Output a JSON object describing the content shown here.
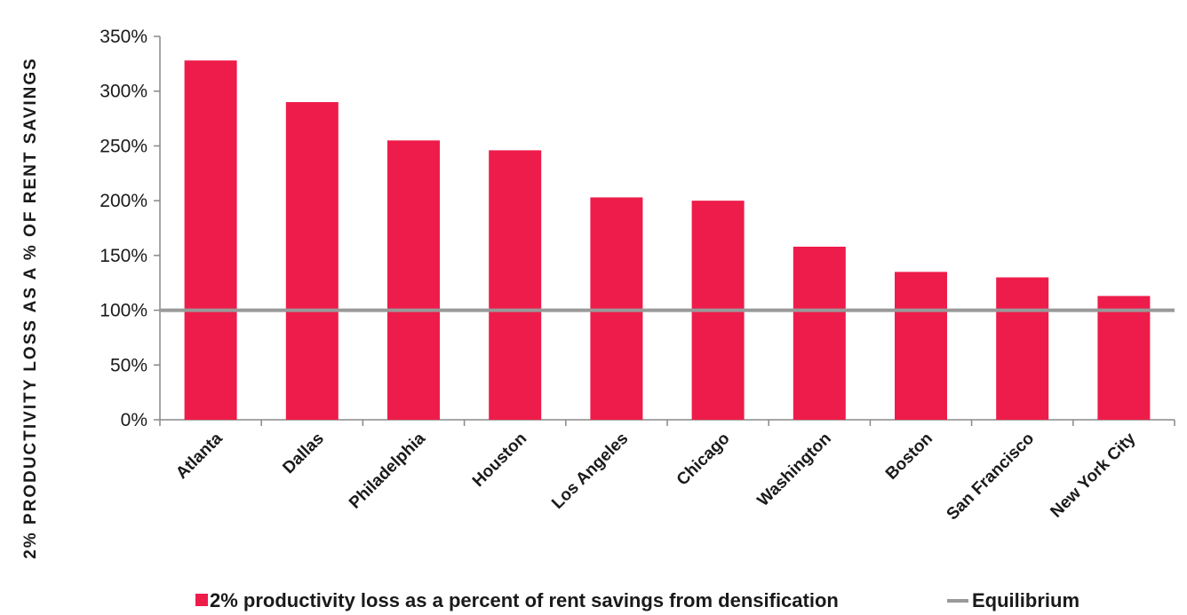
{
  "chart_data": {
    "type": "bar",
    "ylabel": "2% PRODUCTIVITY LOSS AS A % OF RENT SAVINGS",
    "xlabel": "",
    "categories": [
      "Atlanta",
      "Dallas",
      "Philadelphia",
      "Houston",
      "Los Angeles",
      "Chicago",
      "Washington",
      "Boston",
      "San Francisco",
      "New York City"
    ],
    "series": [
      {
        "name": "2% productivity loss as a percent of rent savings from densification",
        "values": [
          328,
          290,
          255,
          246,
          203,
          200,
          158,
          135,
          130,
          113
        ],
        "color": "#ee1c4a"
      }
    ],
    "reference_line": {
      "name": "Equilibrium",
      "value": 100,
      "color": "#999999"
    },
    "ylim": [
      0,
      350
    ],
    "yticks": [
      0,
      50,
      100,
      150,
      200,
      250,
      300,
      350
    ],
    "ytick_labels": [
      "0%",
      "50%",
      "100%",
      "150%",
      "200%",
      "250%",
      "300%",
      "350%"
    ],
    "grid": false,
    "legend_position": "bottom"
  }
}
